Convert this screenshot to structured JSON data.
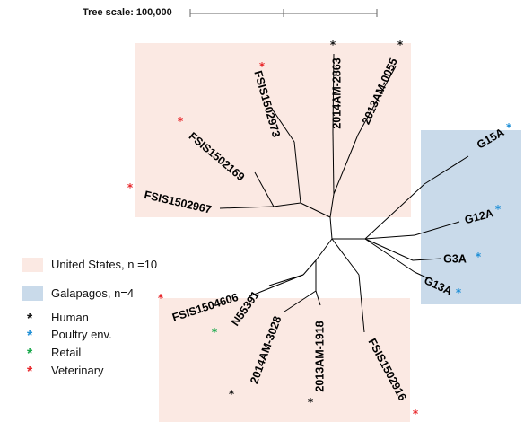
{
  "tree_scale": {
    "label": "Tree scale: 100,000"
  },
  "legend": {
    "regions": [
      {
        "label": "United States, n =10",
        "color": "#fbe9e3"
      },
      {
        "label": "Galapagos, n=4",
        "color": "#c9daea"
      }
    ],
    "sources": [
      {
        "label": "Human",
        "color": "#111111"
      },
      {
        "label": "Poultry env.",
        "color": "#1f8fd6"
      },
      {
        "label": "Retail",
        "color": "#18a84a"
      },
      {
        "label": "Veterinary",
        "color": "#e8262a"
      }
    ]
  },
  "leaves": [
    {
      "id": "FSIS1502973",
      "source": "Veterinary"
    },
    {
      "id": "2014AM-2863",
      "source": "Human"
    },
    {
      "id": "2013AM-0055",
      "source": "Human"
    },
    {
      "id": "FSIS1502169",
      "source": "Veterinary"
    },
    {
      "id": "FSIS1502967",
      "source": "Veterinary"
    },
    {
      "id": "G15A",
      "source": "Poultry env."
    },
    {
      "id": "G12A",
      "source": "Poultry env."
    },
    {
      "id": "G3A",
      "source": "Poultry env."
    },
    {
      "id": "G13A",
      "source": "Poultry env."
    },
    {
      "id": "FSIS1504606",
      "source": "Veterinary"
    },
    {
      "id": "N55391",
      "source": "Retail"
    },
    {
      "id": "2014AM-3028",
      "source": "Human"
    },
    {
      "id": "2013AM-1918",
      "source": "Human"
    },
    {
      "id": "FSIS1502916",
      "source": "Veterinary"
    }
  ]
}
